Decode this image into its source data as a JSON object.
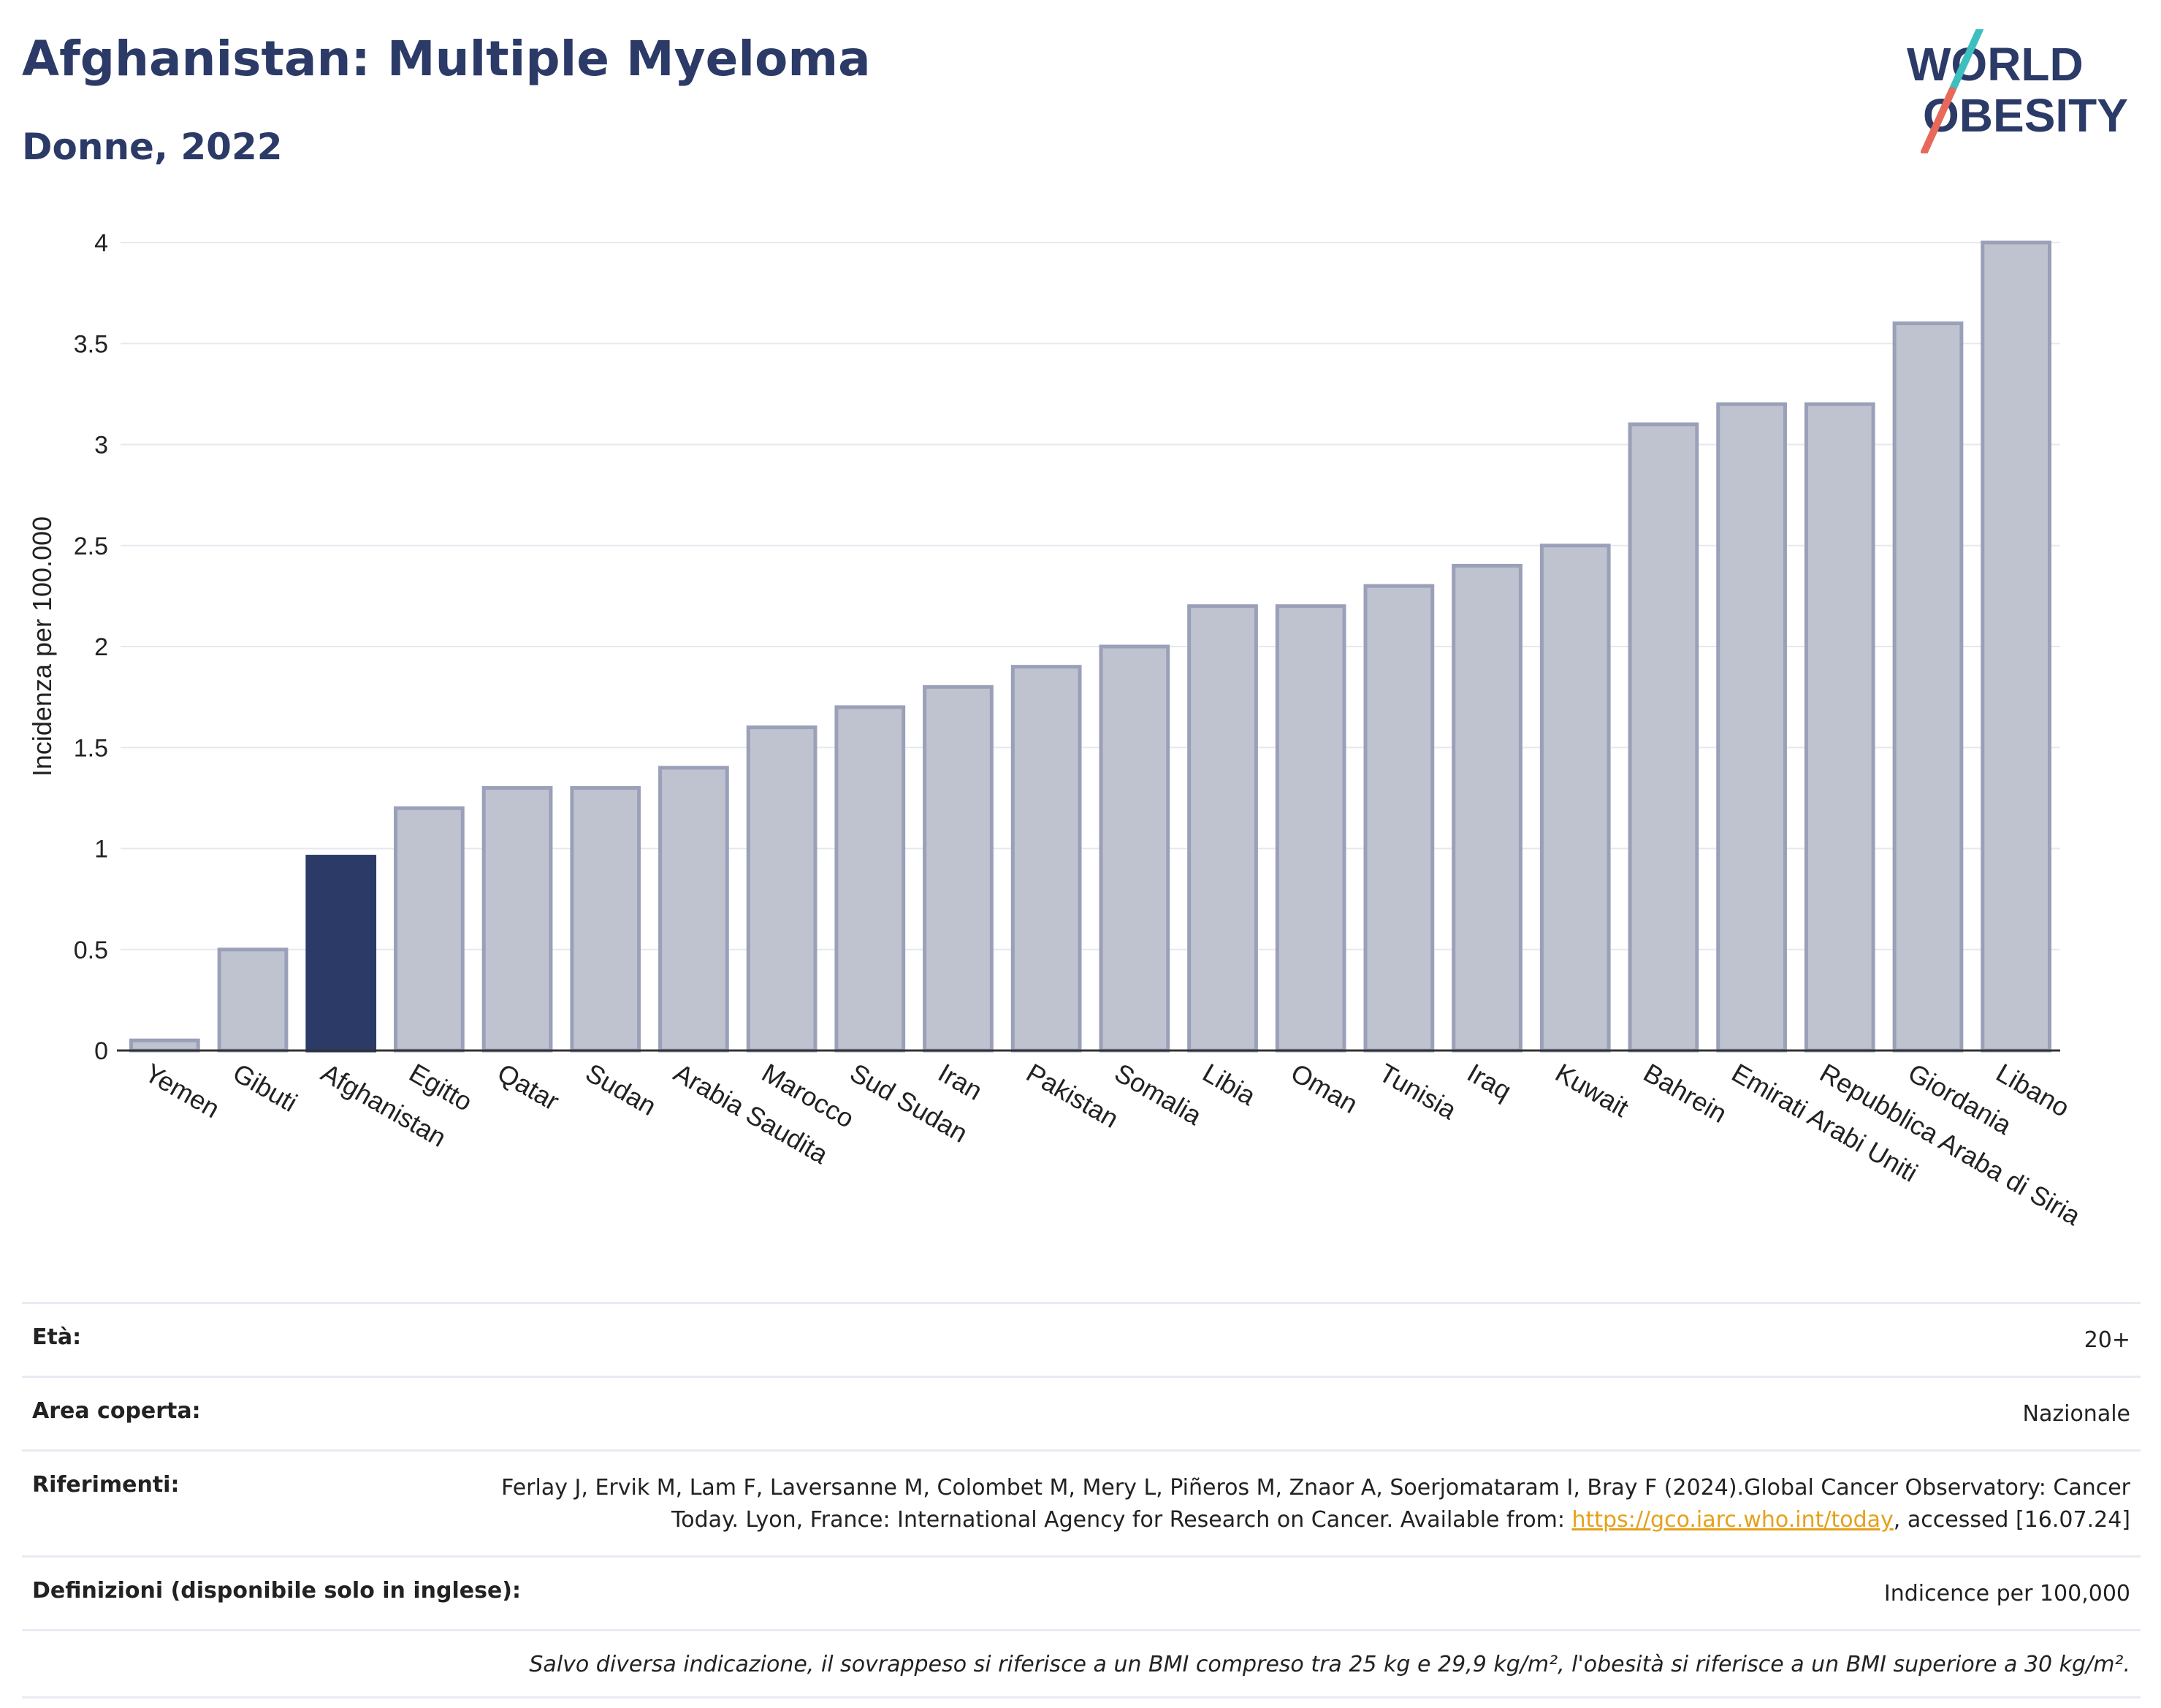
{
  "header": {
    "title": "Afghanistan: Multiple Myeloma",
    "subtitle": "Donne, 2022",
    "logo_line1": "WORLD",
    "logo_line2": "OBESITY"
  },
  "colors": {
    "bar": "#bfc3d0",
    "bar_border": "#9aa0b8",
    "highlight": "#2b3a67",
    "title": "#2b3a67",
    "logo_teal": "#3dbfbf",
    "logo_red": "#e8685a"
  },
  "chart_data": {
    "type": "bar",
    "ylabel": "Incidenza per 100.000",
    "ylim": [
      0,
      4
    ],
    "yticks": [
      0,
      0.5,
      1,
      1.5,
      2,
      2.5,
      3,
      3.5,
      4
    ],
    "ytick_labels": [
      "0",
      "0.5",
      "1",
      "1.5",
      "2",
      "2.5",
      "3",
      "3.5",
      "4"
    ],
    "grid": true,
    "highlight": "Afghanistan",
    "categories": [
      "Yemen",
      "Gibuti",
      "Afghanistan",
      "Egitto",
      "Qatar",
      "Sudan",
      "Arabia Saudita",
      "Marocco",
      "Sud Sudan",
      "Iran",
      "Pakistan",
      "Somalia",
      "Libia",
      "Oman",
      "Tunisia",
      "Iraq",
      "Kuwait",
      "Bahrein",
      "Emirati Arabi Uniti",
      "Repubblica Araba di Siria",
      "Giordania",
      "Libano"
    ],
    "values": [
      0.05,
      0.5,
      0.96,
      1.2,
      1.3,
      1.3,
      1.4,
      1.6,
      1.7,
      1.8,
      1.9,
      2.0,
      2.2,
      2.2,
      2.3,
      2.4,
      2.5,
      3.1,
      3.2,
      3.2,
      3.6,
      4.0
    ]
  },
  "info": {
    "age_label": "Età:",
    "age_value": "20+",
    "area_label": "Area coperta:",
    "area_value": "Nazionale",
    "ref_label": "Riferimenti:",
    "ref_text_before": "Ferlay J, Ervik M, Lam F, Laversanne M, Colombet M, Mery L, Piñeros M, Znaor A, Soerjomataram I, Bray F (2024).Global Cancer Observatory: Cancer Today. Lyon, France: International Agency for Research on Cancer. Available from: ",
    "ref_link": "https://gco.iarc.who.int/today",
    "ref_text_after": ", accessed [16.07.24]",
    "def_label": "Definizioni (disponibile solo in inglese):",
    "def_value": "Indicence per 100,000",
    "note": "Salvo diversa indicazione, il sovrappeso si riferisce a un BMI compreso tra 25 kg e 29,9 kg/m², l'obesità si riferisce a un BMI superiore a 30 kg/m²."
  }
}
